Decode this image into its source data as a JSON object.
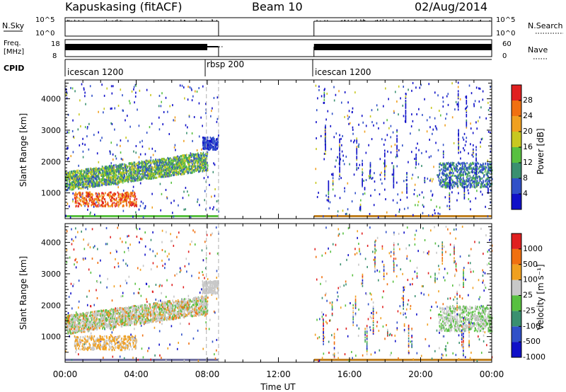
{
  "header": {
    "title": "Kapuskasing (fitACF)",
    "beam": "Beam 10",
    "date": "02/Aug/2014"
  },
  "panels": {
    "nsky": {
      "left_label": "N.Sky",
      "tick_top": "10^5",
      "tick_bottom": "10^0",
      "right_label": "N.Search"
    },
    "freq": {
      "left_label_1": "Freq.",
      "left_label_2": "[MHz]",
      "tick_top": "18",
      "tick_bottom": "8",
      "right_tick_top": "60",
      "right_tick_bottom": "0",
      "right_label": "Nave"
    },
    "cpid": {
      "left_label": "CPID",
      "modes": [
        "icescan 1200",
        "rbsp 200",
        "icescan 1200"
      ]
    }
  },
  "colors": {
    "power": [
      "#1010c8",
      "#3050c8",
      "#3a9070",
      "#58c040",
      "#c8c820",
      "#f0a020",
      "#f07010",
      "#e02020"
    ],
    "velocity": [
      "#1010c8",
      "#3050c8",
      "#3a9070",
      "#58c040",
      "#c8c8c8",
      "#f0a020",
      "#f07010",
      "#e02020"
    ],
    "gate_line": "#c08020"
  },
  "chart_data": [
    {
      "type": "heatmap",
      "name": "power",
      "ylabel": "Slant Range [km]",
      "xlabel": "",
      "ylim": [
        180,
        4600
      ],
      "xlim": [
        "00:00",
        "24:00"
      ],
      "x_ticks": [
        "00:00",
        "04:00",
        "08:00",
        "12:00",
        "16:00",
        "20:00",
        "00:00"
      ],
      "y_ticks": [
        1000,
        2000,
        3000,
        4000
      ],
      "colorbar": {
        "label": "Power [dB]",
        "ticks": [
          "28",
          "24",
          "20",
          "16",
          "12",
          "8",
          "4"
        ]
      },
      "data_gaps": [
        [
          "08:38",
          "14:00"
        ]
      ]
    },
    {
      "type": "heatmap",
      "name": "velocity",
      "ylabel": "Slant Range [km]",
      "xlabel": "Time UT",
      "ylim": [
        180,
        4600
      ],
      "xlim": [
        "00:00",
        "24:00"
      ],
      "x_ticks": [
        "00:00",
        "04:00",
        "08:00",
        "12:00",
        "16:00",
        "20:00",
        "00:00"
      ],
      "y_ticks": [
        1000,
        2000,
        3000,
        4000
      ],
      "colorbar": {
        "label": "Velocity [m s⁻¹]",
        "ticks": [
          "1000",
          "500",
          "100",
          "25",
          "-25",
          "-100",
          "-500",
          "-1000"
        ]
      },
      "data_gaps": [
        [
          "08:38",
          "14:00"
        ]
      ]
    }
  ]
}
